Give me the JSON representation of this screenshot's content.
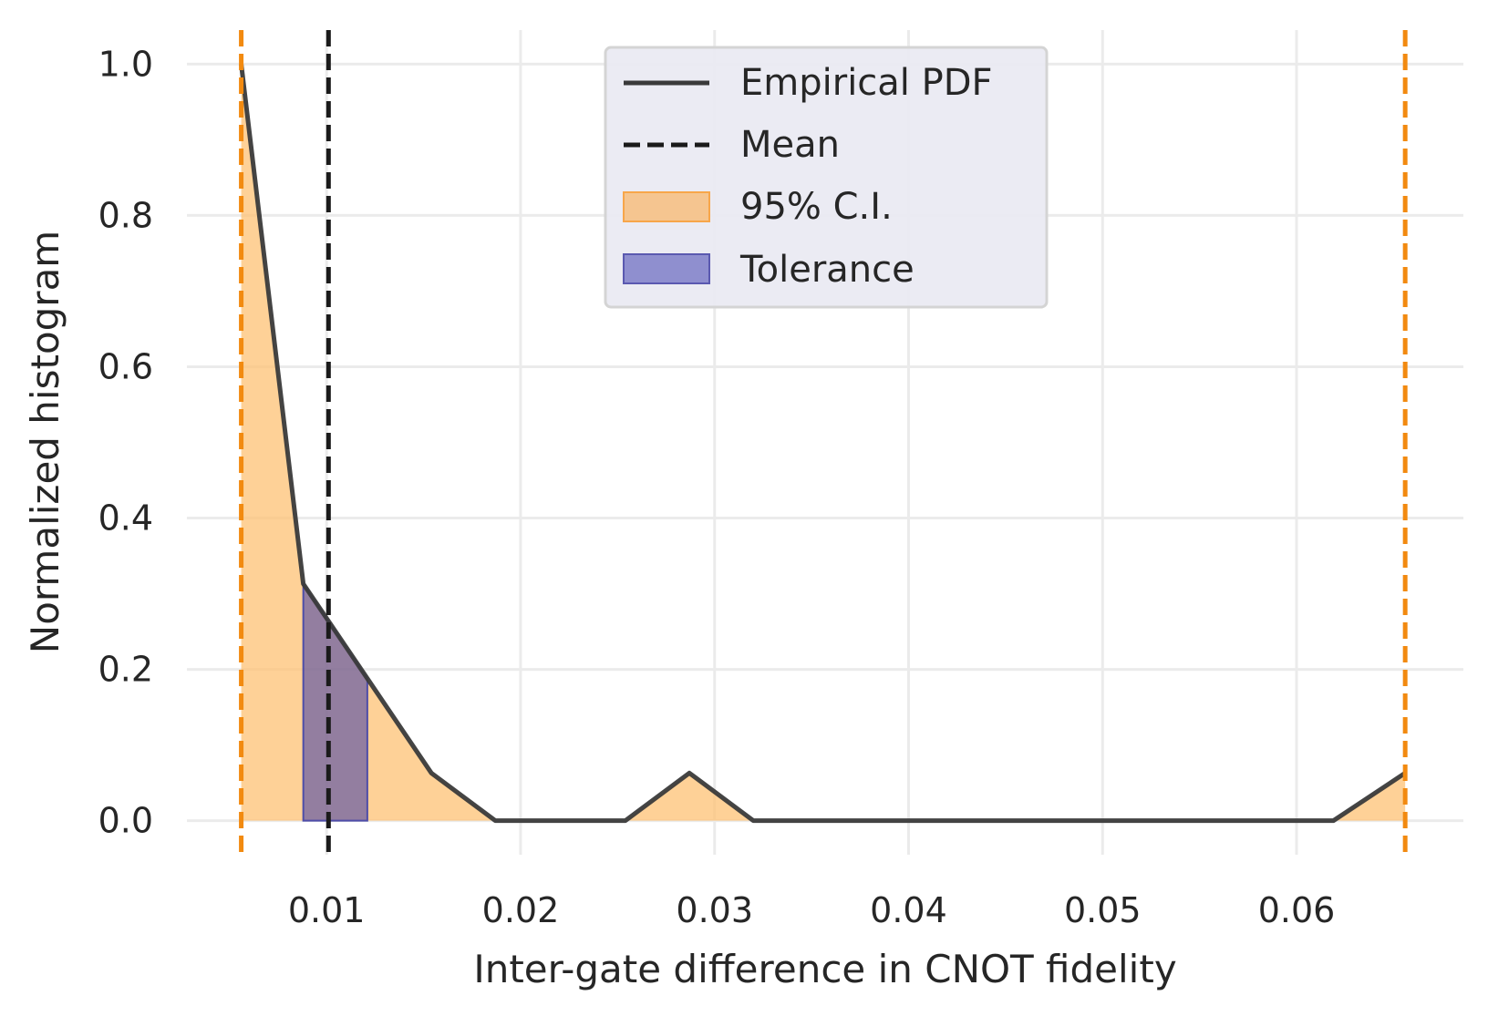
{
  "chart_data": {
    "type": "area",
    "xlabel": "Inter-gate difference in CNOT fidelity",
    "ylabel": "Normalized histogram",
    "xlim": [
      0.0028,
      0.0686
    ],
    "ylim": [
      -0.045,
      1.045
    ],
    "x_ticks": [
      0.01,
      0.02,
      0.03,
      0.04,
      0.05,
      0.06
    ],
    "x_tick_labels": [
      "0.01",
      "0.02",
      "0.03",
      "0.04",
      "0.05",
      "0.06"
    ],
    "y_ticks": [
      0.0,
      0.2,
      0.4,
      0.6,
      0.8,
      1.0
    ],
    "y_tick_labels": [
      "0.0",
      "0.2",
      "0.4",
      "0.6",
      "0.8",
      "1.0"
    ],
    "grid": true,
    "legend_position": "top-center",
    "series": [
      {
        "name": "Empirical PDF",
        "kind": "line",
        "color": "#3a3a3a",
        "x": [
          0.0056,
          0.0088,
          0.0121,
          0.0154,
          0.0187,
          0.022,
          0.0254,
          0.0287,
          0.032,
          0.0353,
          0.0386,
          0.0419,
          0.0452,
          0.0486,
          0.0519,
          0.0552,
          0.0585,
          0.0619,
          0.0656
        ],
        "y": [
          1.0,
          0.313,
          0.188,
          0.063,
          0.0,
          0.0,
          0.0,
          0.063,
          0.0,
          0.0,
          0.0,
          0.0,
          0.0,
          0.0,
          0.0,
          0.0,
          0.0,
          0.0,
          0.063
        ]
      },
      {
        "name": "Mean",
        "kind": "vline",
        "style": "dashed",
        "color": "#1a1a1a",
        "x": 0.0101
      },
      {
        "name": "95% C.I.",
        "kind": "fill",
        "color": "#fdbf6f",
        "range": [
          0.0056,
          0.0656
        ]
      },
      {
        "name": "Tolerance",
        "kind": "fill",
        "color": "#3b3aa8",
        "range": [
          0.0088,
          0.0121
        ]
      }
    ],
    "ci_bounds": {
      "style": "dashed",
      "color": "#f28a10",
      "x": [
        0.0056,
        0.0656
      ]
    }
  }
}
